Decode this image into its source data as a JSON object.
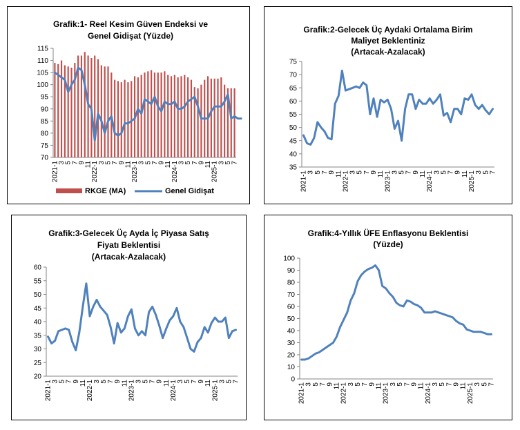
{
  "charts": [
    {
      "type": "bar",
      "title_lines": [
        "Grafik:1- Reel Kesim Güven Endeksi ve",
        "Genel Gidişat (Yüzde)"
      ],
      "ylim": [
        70,
        115
      ],
      "yticks": [
        70,
        75,
        80,
        85,
        90,
        95,
        100,
        105,
        110,
        115
      ],
      "xlabels": [
        "2021-1",
        "3",
        "5",
        "7",
        "9",
        "11",
        "2022-1",
        "3",
        "5",
        "7",
        "9",
        "11",
        "2023-1",
        "3",
        "5",
        "7",
        "9",
        "11",
        "2024-1",
        "3",
        "5",
        "7",
        "9",
        "11",
        "2025-1",
        "3",
        "5",
        "7"
      ],
      "series": [
        {
          "name": "RKGE (MA)",
          "color": "#c0504d",
          "values": [
            109,
            108.5,
            110,
            108,
            107.5,
            107,
            109,
            112,
            112,
            113.5,
            112,
            111,
            112,
            110.5,
            108,
            107.5,
            107.5,
            105,
            102,
            101.5,
            101,
            102,
            101,
            101.5,
            103.5,
            103,
            104,
            105,
            105.5,
            106,
            105,
            105,
            105,
            105.5,
            104,
            103.5,
            104,
            103,
            103.5,
            104,
            103,
            102,
            99,
            98.5,
            100,
            102,
            103.5,
            102.5,
            102.5,
            102.5,
            103,
            100,
            98.5,
            98.5,
            98.5
          ]
        },
        {
          "name": "Genel Gidişat",
          "color": "#4f81bd",
          "values": [
            105,
            104,
            103,
            102,
            97,
            100,
            102,
            107,
            106,
            100,
            92,
            90,
            77,
            88,
            85,
            80,
            85,
            87,
            80,
            79,
            80,
            84,
            84,
            85,
            86,
            90,
            88,
            94,
            93,
            92,
            95,
            91,
            89,
            93,
            92,
            92,
            93,
            90,
            90,
            91,
            93,
            94,
            95,
            91,
            86,
            86,
            86,
            89,
            91,
            91,
            91,
            93,
            96,
            86,
            87,
            86,
            86
          ]
        }
      ]
    },
    {
      "type": "line",
      "title_lines": [
        "Grafik:2-Gelecek Üç Aydaki Ortalama Birim",
        "Maliyet Beklentiniz",
        "(Artacak-Azalacak)"
      ],
      "ylim": [
        35,
        75
      ],
      "yticks": [
        35,
        40,
        45,
        50,
        55,
        60,
        65,
        70,
        75
      ],
      "xlabels": [
        "2021-1",
        "3",
        "5",
        "7",
        "9",
        "11",
        "2022-1",
        "3",
        "5",
        "7",
        "9",
        "11",
        "2023-1",
        "3",
        "5",
        "7",
        "9",
        "11",
        "2024-1",
        "3",
        "5",
        "7",
        "9",
        "11",
        "2025-1",
        "3",
        "5",
        "7"
      ],
      "series": [
        {
          "color": "#4f81bd",
          "values": [
            47,
            44,
            43.5,
            46,
            52,
            50,
            48.5,
            46,
            45.5,
            59,
            62,
            71.5,
            64,
            64.5,
            65,
            65.5,
            65,
            67,
            66,
            55,
            61,
            54,
            60.5,
            59.5,
            60.5,
            57,
            49.5,
            52.5,
            45,
            57,
            62.5,
            62.5,
            57,
            60.5,
            59,
            59,
            61,
            59,
            60.5,
            62.5,
            54.5,
            55.5,
            52,
            57,
            57,
            55,
            61,
            60.5,
            62.5,
            58.5,
            57,
            58.5,
            56.5,
            55,
            57
          ]
        }
      ]
    },
    {
      "type": "line",
      "title_lines": [
        "Grafik:3-Gelecek Üç Ayda İç Piyasa Satış",
        "Fiyatı Beklentisi",
        "(Artacak-Azalacak)"
      ],
      "ylim": [
        20,
        60
      ],
      "yticks": [
        20,
        25,
        30,
        35,
        40,
        45,
        50,
        55,
        60
      ],
      "xlabels": [
        "2021-1",
        "3",
        "5",
        "7",
        "9",
        "11",
        "2022-1",
        "3",
        "5",
        "7",
        "9",
        "11",
        "2023-1",
        "3",
        "5",
        "7",
        "9",
        "11",
        "2024-1",
        "3",
        "5",
        "7",
        "9",
        "11",
        "2025-1",
        "3",
        "5",
        "7"
      ],
      "series": [
        {
          "color": "#4f81bd",
          "values": [
            34.5,
            32,
            33,
            36.5,
            37,
            37.5,
            37,
            32.5,
            29.5,
            36,
            45.5,
            54,
            42,
            45.5,
            48,
            45.5,
            44,
            42.5,
            38,
            32,
            39.5,
            36,
            37.5,
            42,
            44.5,
            37.5,
            35,
            36.5,
            35,
            43.5,
            45.5,
            42.5,
            38.5,
            34,
            37.5,
            40.5,
            42,
            45,
            40,
            38,
            34,
            30,
            29,
            32.5,
            34,
            38,
            36,
            39.5,
            41.5,
            40,
            40,
            41.5,
            34,
            36.5,
            37
          ]
        }
      ]
    },
    {
      "type": "line",
      "title_lines": [
        "Grafik:4-Yıllık ÜFE Enflasyonu Beklentisi",
        "(Yüzde)"
      ],
      "ylim": [
        0,
        100
      ],
      "yticks": [
        0,
        10,
        20,
        30,
        40,
        50,
        60,
        70,
        80,
        90,
        100
      ],
      "xlabels": [
        "2021-1",
        "3",
        "5",
        "7",
        "9",
        "11",
        "2022-1",
        "3",
        "5",
        "7",
        "9",
        "11",
        "2023-1",
        "3",
        "5",
        "7",
        "9",
        "11",
        "2024-1",
        "3",
        "5",
        "7",
        "9",
        "11",
        "2025-1",
        "3",
        "5",
        "7"
      ],
      "series": [
        {
          "color": "#4f81bd",
          "values": [
            16,
            16,
            17,
            19,
            21,
            22,
            24,
            26,
            28,
            30,
            35,
            43,
            49,
            55,
            65,
            71,
            81,
            86,
            89,
            91,
            92,
            94,
            90,
            77,
            75,
            71,
            68,
            63,
            61,
            60,
            65,
            64,
            62,
            61,
            59,
            55,
            55,
            55,
            56,
            55,
            54,
            53,
            52,
            51,
            48,
            46,
            45,
            41,
            40,
            39,
            39,
            39,
            38,
            37,
            37
          ]
        }
      ]
    }
  ]
}
